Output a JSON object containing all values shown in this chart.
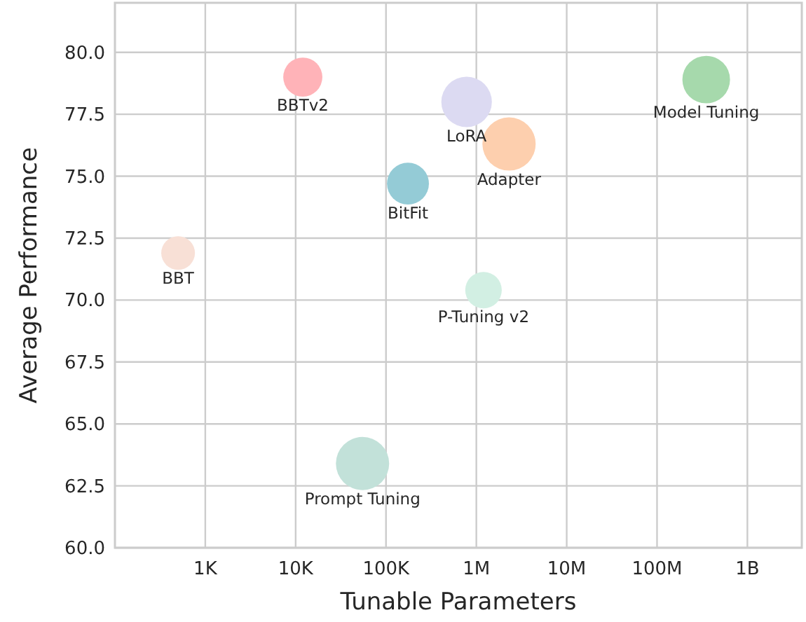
{
  "chart_data": {
    "type": "bubble",
    "xlabel": "Tunable Parameters",
    "ylabel": "Average Performance",
    "log": "x",
    "grid": true,
    "xlim": [
      100,
      4000000000
    ],
    "xticks": [
      {
        "value": 1000,
        "label": "1K"
      },
      {
        "value": 10000,
        "label": "10K"
      },
      {
        "value": 100000,
        "label": "100K"
      },
      {
        "value": 1000000,
        "label": "1M"
      },
      {
        "value": 10000000,
        "label": "10M"
      },
      {
        "value": 100000000,
        "label": "100M"
      },
      {
        "value": 1000000000,
        "label": "1B"
      }
    ],
    "ylim": [
      60,
      82
    ],
    "yticks": [
      {
        "value": 60,
        "label": "60.0"
      },
      {
        "value": 62.5,
        "label": "62.5"
      },
      {
        "value": 65,
        "label": "65.0"
      },
      {
        "value": 67.5,
        "label": "67.5"
      },
      {
        "value": 70,
        "label": "70.0"
      },
      {
        "value": 72.5,
        "label": "72.5"
      },
      {
        "value": 75,
        "label": "75.0"
      },
      {
        "value": 77.5,
        "label": "77.5"
      },
      {
        "value": 80,
        "label": "80.0"
      }
    ],
    "series": [
      {
        "name": "BBT",
        "color": "#f8e0d6",
        "x": [
          500
        ],
        "values": [
          71.9
        ],
        "sizes": [
          0.4
        ]
      },
      {
        "name": "BBTv2",
        "color": "#ffb3b8",
        "x": [
          12000
        ],
        "values": [
          79.0
        ],
        "sizes": [
          0.54
        ]
      },
      {
        "name": "BitFit",
        "color": "#94cbd6",
        "x": [
          175000
        ],
        "values": [
          74.7
        ],
        "sizes": [
          0.62
        ]
      },
      {
        "name": "LoRA",
        "color": "#dcdaf2",
        "x": [
          780000
        ],
        "values": [
          78.0
        ],
        "sizes": [
          0.9
        ]
      },
      {
        "name": "Adapter",
        "color": "#fdcfae",
        "x": [
          2300000
        ],
        "values": [
          76.3
        ],
        "sizes": [
          1
        ]
      },
      {
        "name": "Model Tuning",
        "color": "#a6d9ac",
        "x": [
          350000000
        ],
        "values": [
          78.9
        ],
        "sizes": [
          0.8
        ]
      },
      {
        "name": "P-Tuning v2",
        "color": "#d2efe3",
        "x": [
          1200000
        ],
        "values": [
          70.4
        ],
        "sizes": [
          0.47
        ]
      },
      {
        "name": "Prompt Tuning",
        "color": "#c2e1d9",
        "x": [
          55000
        ],
        "values": [
          63.4
        ],
        "sizes": [
          1
        ]
      }
    ]
  }
}
